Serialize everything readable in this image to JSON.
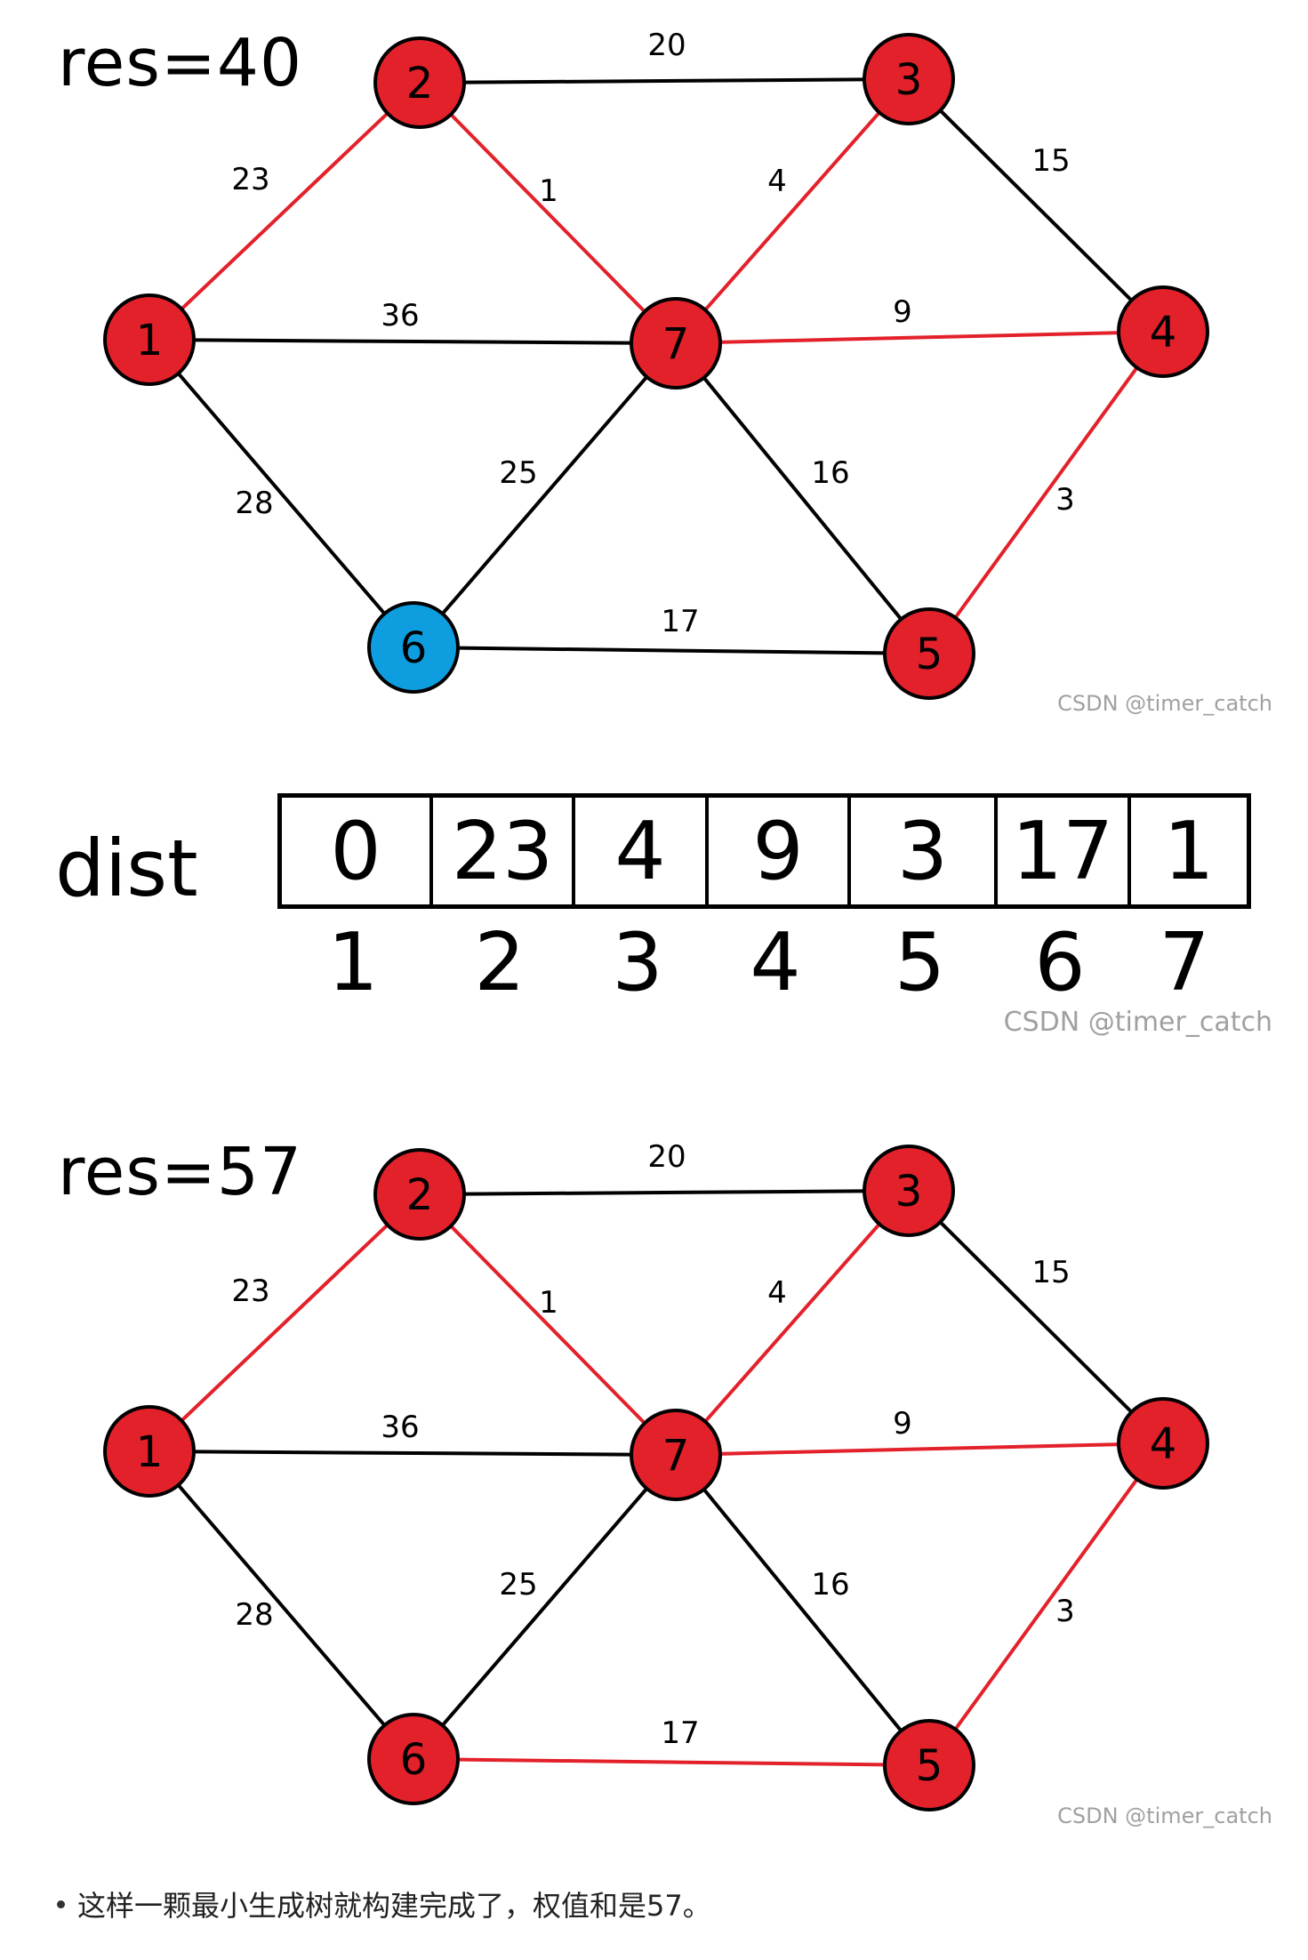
{
  "graph_top": {
    "res_label": "res=40",
    "watermark": "CSDN @timer_catch",
    "nodes": [
      {
        "id": "1",
        "color": "#e3212b"
      },
      {
        "id": "2",
        "color": "#e3212b"
      },
      {
        "id": "3",
        "color": "#e3212b"
      },
      {
        "id": "4",
        "color": "#e3212b"
      },
      {
        "id": "5",
        "color": "#e3212b"
      },
      {
        "id": "6",
        "color": "#0e9ee0"
      },
      {
        "id": "7",
        "color": "#e3212b"
      }
    ],
    "edges": [
      {
        "from": "2",
        "to": "3",
        "weight": "20",
        "in_tree": false
      },
      {
        "from": "1",
        "to": "2",
        "weight": "23",
        "in_tree": true
      },
      {
        "from": "2",
        "to": "7",
        "weight": "1",
        "in_tree": true
      },
      {
        "from": "3",
        "to": "7",
        "weight": "4",
        "in_tree": true
      },
      {
        "from": "3",
        "to": "4",
        "weight": "15",
        "in_tree": false
      },
      {
        "from": "1",
        "to": "7",
        "weight": "36",
        "in_tree": false
      },
      {
        "from": "7",
        "to": "4",
        "weight": "9",
        "in_tree": true
      },
      {
        "from": "1",
        "to": "6",
        "weight": "28",
        "in_tree": false
      },
      {
        "from": "6",
        "to": "7",
        "weight": "25",
        "in_tree": false
      },
      {
        "from": "7",
        "to": "5",
        "weight": "16",
        "in_tree": false
      },
      {
        "from": "4",
        "to": "5",
        "weight": "3",
        "in_tree": true
      },
      {
        "from": "6",
        "to": "5",
        "weight": "17",
        "in_tree": false
      }
    ]
  },
  "dist": {
    "label": "dist",
    "values": [
      "0",
      "23",
      "4",
      "9",
      "3",
      "17",
      "1"
    ],
    "indices": [
      "1",
      "2",
      "3",
      "4",
      "5",
      "6",
      "7"
    ],
    "watermark": "CSDN @timer_catch"
  },
  "graph_bottom": {
    "res_label": "res=57",
    "watermark": "CSDN @timer_catch",
    "nodes": [
      {
        "id": "1",
        "color": "#e3212b"
      },
      {
        "id": "2",
        "color": "#e3212b"
      },
      {
        "id": "3",
        "color": "#e3212b"
      },
      {
        "id": "4",
        "color": "#e3212b"
      },
      {
        "id": "5",
        "color": "#e3212b"
      },
      {
        "id": "6",
        "color": "#e3212b"
      },
      {
        "id": "7",
        "color": "#e3212b"
      }
    ],
    "edges": [
      {
        "from": "2",
        "to": "3",
        "weight": "20",
        "in_tree": false
      },
      {
        "from": "1",
        "to": "2",
        "weight": "23",
        "in_tree": true
      },
      {
        "from": "2",
        "to": "7",
        "weight": "1",
        "in_tree": true
      },
      {
        "from": "3",
        "to": "7",
        "weight": "4",
        "in_tree": true
      },
      {
        "from": "3",
        "to": "4",
        "weight": "15",
        "in_tree": false
      },
      {
        "from": "1",
        "to": "7",
        "weight": "36",
        "in_tree": false
      },
      {
        "from": "7",
        "to": "4",
        "weight": "9",
        "in_tree": true
      },
      {
        "from": "1",
        "to": "6",
        "weight": "28",
        "in_tree": false
      },
      {
        "from": "6",
        "to": "7",
        "weight": "25",
        "in_tree": false
      },
      {
        "from": "7",
        "to": "5",
        "weight": "16",
        "in_tree": false
      },
      {
        "from": "4",
        "to": "5",
        "weight": "3",
        "in_tree": true
      },
      {
        "from": "6",
        "to": "5",
        "weight": "17",
        "in_tree": true
      }
    ]
  },
  "colors": {
    "tree_edge": "#e3212b",
    "other_edge": "#000000"
  },
  "caption": {
    "text": "这样一颗最小生成树就构建完成了，权值和是57。"
  }
}
